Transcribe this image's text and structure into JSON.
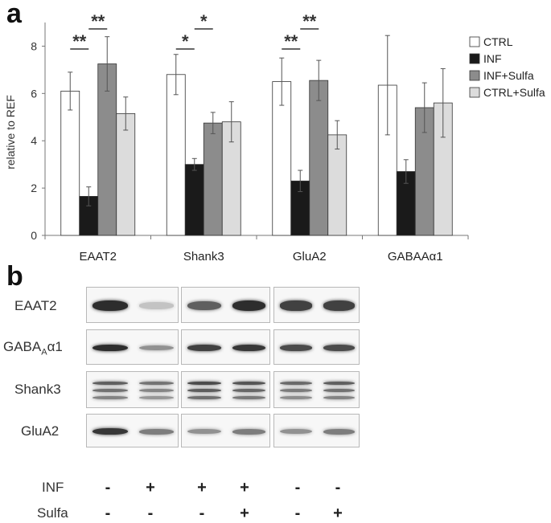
{
  "panel_a": {
    "letter": "a"
  },
  "panel_b": {
    "letter": "b",
    "blot_rows": [
      "EAAT2",
      "GABA",
      "A",
      "α1",
      "Shank3",
      "GluA2"
    ],
    "treatments": {
      "inf_label": "INF",
      "sulfa_label": "Sulfa",
      "inf_signs": [
        "-",
        "+",
        "+",
        "+",
        "-",
        "-"
      ],
      "sulfa_signs": [
        "-",
        "-",
        "-",
        "+",
        "-",
        "+"
      ]
    },
    "band_intensity": {
      "EAAT2": [
        0.95,
        0.2,
        0.7,
        0.95,
        0.85,
        0.85
      ],
      "GABA_A_a1": [
        0.95,
        0.45,
        0.85,
        0.9,
        0.8,
        0.8
      ],
      "Shank3": [
        0.7,
        0.6,
        0.8,
        0.75,
        0.65,
        0.7
      ],
      "GluA2": [
        0.9,
        0.55,
        0.45,
        0.55,
        0.45,
        0.55
      ]
    }
  },
  "chart_data": {
    "type": "bar",
    "categories": [
      "EAAT2",
      "Shank3",
      "GluA2",
      "GABAAα1"
    ],
    "ylabel": "relative to REF",
    "xlabel": "",
    "ylim": [
      0,
      9
    ],
    "yticks": [
      "0",
      "2",
      "4",
      "6",
      "8"
    ],
    "series": [
      {
        "name": "CTRL",
        "color": "#ffffff",
        "values": [
          6.1,
          6.8,
          6.5,
          6.35
        ],
        "err": [
          0.8,
          0.85,
          1.0,
          2.1
        ]
      },
      {
        "name": "INF",
        "color": "#1a1a1a",
        "values": [
          1.65,
          3.0,
          2.3,
          2.7
        ],
        "err": [
          0.4,
          0.25,
          0.45,
          0.5
        ]
      },
      {
        "name": "INF+Sulfa",
        "color": "#8c8c8c",
        "values": [
          7.25,
          4.75,
          6.55,
          5.4
        ],
        "err": [
          1.15,
          0.45,
          0.85,
          1.05
        ]
      },
      {
        "name": "CTRL+Sulfa",
        "color": "#dcdcdc",
        "values": [
          5.15,
          4.8,
          4.25,
          5.6
        ],
        "err": [
          0.7,
          0.85,
          0.6,
          1.45
        ]
      }
    ],
    "significance": [
      {
        "label": "**",
        "group": 0,
        "from": 0,
        "to": 1,
        "level": 0
      },
      {
        "label": "**",
        "group": 0,
        "from": 1,
        "to": 2,
        "level": 1
      },
      {
        "label": "*",
        "group": 1,
        "from": 0,
        "to": 1,
        "level": 0
      },
      {
        "label": "*",
        "group": 1,
        "from": 1,
        "to": 2,
        "level": 1
      },
      {
        "label": "**",
        "group": 2,
        "from": 0,
        "to": 1,
        "level": 0
      },
      {
        "label": "**",
        "group": 2,
        "from": 1,
        "to": 2,
        "level": 1
      }
    ]
  }
}
